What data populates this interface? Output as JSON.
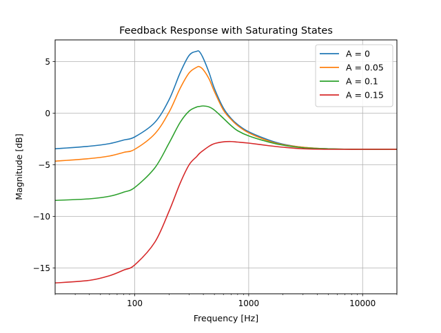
{
  "chart_data": {
    "type": "line",
    "title": "Feedback Response with Saturating States",
    "xlabel": "Frequency [Hz]",
    "ylabel": "Magnitude [dB]",
    "xscale": "log",
    "xlim": [
      20,
      20000
    ],
    "ylim": [
      -17.5,
      7.1
    ],
    "xticks": [
      {
        "value": 100,
        "label": "100"
      },
      {
        "value": 1000,
        "label": "1000"
      },
      {
        "value": 10000,
        "label": "10000"
      }
    ],
    "yticks": [
      {
        "value": 5,
        "label": "5"
      },
      {
        "value": 0,
        "label": "0"
      },
      {
        "value": -5,
        "label": "−5"
      },
      {
        "value": -10,
        "label": "−10"
      },
      {
        "value": -15,
        "label": "−15"
      }
    ],
    "grid": true,
    "legend_position": "top-right",
    "x": [
      20,
      40,
      60,
      80,
      100,
      150,
      200,
      250,
      300,
      350,
      370,
      400,
      450,
      500,
      600,
      700,
      800,
      1000,
      1500,
      2000,
      3000,
      5000,
      10000,
      20000
    ],
    "series": [
      {
        "name": "A = 0",
        "color": "#1f77b4",
        "values": [
          -3.45,
          -3.2,
          -2.95,
          -2.6,
          -2.3,
          -0.9,
          1.3,
          3.9,
          5.6,
          6.0,
          5.95,
          5.3,
          3.9,
          2.4,
          0.5,
          -0.5,
          -1.1,
          -1.8,
          -2.6,
          -3.0,
          -3.3,
          -3.45,
          -3.5,
          -3.5
        ]
      },
      {
        "name": "A = 0.05",
        "color": "#ff7f0e",
        "values": [
          -4.65,
          -4.4,
          -4.15,
          -3.8,
          -3.5,
          -2.0,
          0.1,
          2.4,
          3.9,
          4.45,
          4.5,
          4.2,
          3.3,
          2.1,
          0.3,
          -0.6,
          -1.2,
          -1.9,
          -2.7,
          -3.05,
          -3.3,
          -3.45,
          -3.5,
          -3.5
        ]
      },
      {
        "name": "A = 0.1",
        "color": "#2ca02c",
        "values": [
          -8.45,
          -8.3,
          -8.05,
          -7.65,
          -7.2,
          -5.3,
          -2.9,
          -0.9,
          0.2,
          0.6,
          0.65,
          0.7,
          0.6,
          0.3,
          -0.5,
          -1.2,
          -1.7,
          -2.2,
          -2.8,
          -3.1,
          -3.35,
          -3.45,
          -3.5,
          -3.5
        ]
      },
      {
        "name": "A = 0.15",
        "color": "#d62728",
        "values": [
          -16.45,
          -16.2,
          -15.75,
          -15.2,
          -14.7,
          -12.5,
          -9.5,
          -6.8,
          -5.0,
          -4.2,
          -3.9,
          -3.6,
          -3.2,
          -2.95,
          -2.78,
          -2.75,
          -2.8,
          -2.9,
          -3.15,
          -3.3,
          -3.45,
          -3.5,
          -3.5,
          -3.5
        ]
      }
    ]
  }
}
